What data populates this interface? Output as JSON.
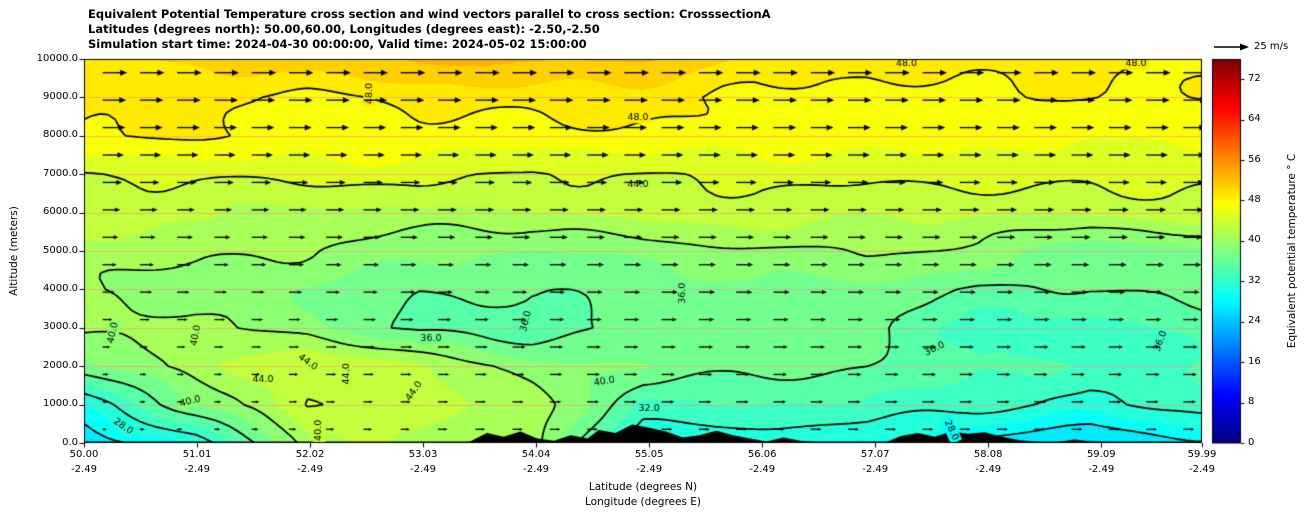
{
  "title": {
    "line1": "Equivalent Potential Temperature cross section and wind vectors parallel to cross section: CrosssectionA",
    "line2": "Latitudes (degrees north): 50.00,60.00, Longitudes (degrees east): -2.50,-2.50",
    "line3": "Simulation start time: 2024-04-30 00:00:00, Valid time: 2024-05-02 15:00:00"
  },
  "axes": {
    "y_label": "Altitude (meters)",
    "x_label_line1": "Latitude (degrees N)",
    "x_label_line2": "Longitude (degrees E)",
    "y_tick_labels": [
      "0.0",
      "1000.0",
      "2000.0",
      "3000.0",
      "4000.0",
      "5000.0",
      "6000.0",
      "7000.0",
      "8000.0",
      "9000.0",
      "10000.0"
    ],
    "x_ticks": [
      {
        "lat": "50.00",
        "lon": "-2.49"
      },
      {
        "lat": "51.01",
        "lon": "-2.49"
      },
      {
        "lat": "52.02",
        "lon": "-2.49"
      },
      {
        "lat": "53.03",
        "lon": "-2.49"
      },
      {
        "lat": "54.04",
        "lon": "-2.49"
      },
      {
        "lat": "55.05",
        "lon": "-2.49"
      },
      {
        "lat": "56.06",
        "lon": "-2.49"
      },
      {
        "lat": "57.07",
        "lon": "-2.49"
      },
      {
        "lat": "58.08",
        "lon": "-2.49"
      },
      {
        "lat": "59.09",
        "lon": "-2.49"
      },
      {
        "lat": "59.99",
        "lon": "-2.49"
      }
    ]
  },
  "colorbar": {
    "label": "Equivalent potential temperature ° C",
    "tick_labels": [
      "0",
      "8",
      "16",
      "24",
      "32",
      "40",
      "48",
      "56",
      "64",
      "72"
    ],
    "vmin": 0,
    "vmax": 76,
    "colormap": "jet"
  },
  "quiver_key": {
    "label": "25 m/s",
    "speed_m_s": 25
  },
  "chart_data": {
    "type": "contourf+contour+quiver cross-section",
    "xlim": [
      50.0,
      59.99
    ],
    "ylim": [
      0,
      10000
    ],
    "x_latitudes": [
      50,
      51,
      52,
      53,
      54,
      55,
      56,
      57,
      58,
      59,
      60
    ],
    "altitudes_m": [
      0,
      1000,
      2000,
      3000,
      4000,
      5000,
      6000,
      7000,
      8000,
      9000,
      10000
    ],
    "theta_e_c": [
      [
        26,
        30,
        41,
        42,
        41,
        30,
        30,
        30,
        27.5,
        26,
        27.5
      ],
      [
        30,
        38,
        44.3,
        43,
        41,
        33.5,
        34,
        34,
        33,
        31,
        33
      ],
      [
        38,
        41,
        44.2,
        42,
        39,
        38,
        37,
        36,
        34,
        33.5,
        34
      ],
      [
        40.5,
        40.2,
        39,
        35.5,
        35,
        36.5,
        37,
        36.5,
        33.5,
        33,
        35
      ],
      [
        40,
        39.5,
        38,
        36,
        35.8,
        37,
        38,
        37.5,
        35.8,
        35.5,
        36.5
      ],
      [
        41,
        40.5,
        39.5,
        38.5,
        38,
        39,
        39.5,
        39.8,
        39.5,
        36.5,
        38
      ],
      [
        43,
        42.5,
        41.5,
        42,
        41.5,
        42.5,
        43,
        42.5,
        42.5,
        42.5,
        43
      ],
      [
        44.3,
        44.5,
        44.8,
        44.5,
        43.6,
        44.3,
        45,
        44.8,
        44.5,
        44.5,
        44.3
      ],
      [
        48,
        47.8,
        47.3,
        47.5,
        47.5,
        47.5,
        46.8,
        46.5,
        46.6,
        46.6,
        46.6
      ],
      [
        48.6,
        48.5,
        47.9,
        48.4,
        48.6,
        48.5,
        47.9,
        47.6,
        47.7,
        47.7,
        47.8
      ],
      [
        50,
        50.5,
        51,
        52,
        52.5,
        52.5,
        49.5,
        48.4,
        48.3,
        48.3,
        48.2
      ]
    ],
    "u_wind_m_s": [
      [
        3,
        4,
        6,
        7,
        8,
        8,
        8,
        8,
        8,
        8,
        8
      ],
      [
        4,
        5,
        7,
        8,
        9,
        10,
        10,
        10,
        10,
        10,
        10
      ],
      [
        5,
        6,
        8,
        9,
        10,
        11,
        11,
        11,
        11,
        11,
        11
      ],
      [
        7,
        8,
        9,
        10,
        11,
        12,
        12,
        12,
        12,
        12,
        12
      ],
      [
        10,
        10,
        11,
        12,
        12,
        13,
        13,
        13,
        13,
        13,
        13
      ],
      [
        12,
        12,
        13,
        13,
        14,
        14,
        14,
        14,
        14,
        15,
        15
      ],
      [
        14,
        14,
        14,
        15,
        15,
        15,
        15,
        15,
        16,
        16,
        16
      ],
      [
        16,
        16,
        16,
        16,
        16,
        17,
        17,
        17,
        17,
        17,
        17
      ],
      [
        18,
        18,
        18,
        18,
        18,
        18,
        18,
        18,
        18,
        18,
        18
      ],
      [
        19,
        19,
        19,
        19,
        19,
        19,
        19,
        19,
        19,
        19,
        19
      ],
      [
        20,
        20,
        20,
        20,
        20,
        20,
        20,
        20,
        20,
        20,
        20
      ]
    ],
    "contour_levels": [
      28,
      32,
      36,
      40,
      44,
      48
    ],
    "fill_level_step": 2,
    "contour_labels": [
      {
        "text": "48.0",
        "lat": 52.55,
        "alt": 9100,
        "rot": 90
      },
      {
        "text": "48.0",
        "lat": 54.95,
        "alt": 8480,
        "rot": 0
      },
      {
        "text": "48.0",
        "lat": 57.35,
        "alt": 9880,
        "rot": 0
      },
      {
        "text": "48.0",
        "lat": 59.4,
        "alt": 9880,
        "rot": 0
      },
      {
        "text": "44.0",
        "lat": 54.95,
        "alt": 6720,
        "rot": 0
      },
      {
        "text": "36.0",
        "lat": 55.35,
        "alt": 3900,
        "rot": 90
      },
      {
        "text": "36.0",
        "lat": 53.1,
        "alt": 2730,
        "rot": 0
      },
      {
        "text": "36.0",
        "lat": 53.95,
        "alt": 3170,
        "rot": 75
      },
      {
        "text": "36.0",
        "lat": 57.6,
        "alt": 2450,
        "rot": 25
      },
      {
        "text": "36.0",
        "lat": 59.62,
        "alt": 2650,
        "rot": 70
      },
      {
        "text": "40.0",
        "lat": 50.26,
        "alt": 2870,
        "rot": 78
      },
      {
        "text": "40.0",
        "lat": 51.0,
        "alt": 2800,
        "rot": 80
      },
      {
        "text": "44.0",
        "lat": 52.0,
        "alt": 2100,
        "rot": -35
      },
      {
        "text": "44.0",
        "lat": 52.35,
        "alt": 1800,
        "rot": 90
      },
      {
        "text": "44.0",
        "lat": 51.6,
        "alt": 1660,
        "rot": 0
      },
      {
        "text": "44.0",
        "lat": 52.95,
        "alt": 1350,
        "rot": 55
      },
      {
        "text": "40.0",
        "lat": 50.95,
        "alt": 1080,
        "rot": 15
      },
      {
        "text": "40.0",
        "lat": 54.65,
        "alt": 1600,
        "rot": 10
      },
      {
        "text": "40.0",
        "lat": 52.1,
        "alt": 330,
        "rot": 90
      },
      {
        "text": "32.0",
        "lat": 55.05,
        "alt": 900,
        "rot": 0
      },
      {
        "text": "28.0",
        "lat": 50.35,
        "alt": 430,
        "rot": -35
      },
      {
        "text": "28.0",
        "lat": 57.75,
        "alt": 330,
        "rot": -65
      }
    ],
    "terrain_profile": [
      [
        50,
        0
      ],
      [
        53.3,
        0
      ],
      [
        53.45,
        40
      ],
      [
        53.6,
        260
      ],
      [
        53.75,
        160
      ],
      [
        53.9,
        300
      ],
      [
        54.05,
        120
      ],
      [
        54.2,
        60
      ],
      [
        54.35,
        200
      ],
      [
        54.5,
        120
      ],
      [
        54.6,
        340
      ],
      [
        54.75,
        260
      ],
      [
        54.9,
        480
      ],
      [
        55.05,
        400
      ],
      [
        55.2,
        300
      ],
      [
        55.35,
        140
      ],
      [
        55.5,
        200
      ],
      [
        55.65,
        320
      ],
      [
        55.8,
        200
      ],
      [
        55.95,
        120
      ],
      [
        56.1,
        40
      ],
      [
        56.25,
        140
      ],
      [
        56.4,
        60
      ],
      [
        56.55,
        20
      ],
      [
        56.7,
        0
      ],
      [
        57.0,
        20
      ],
      [
        57.15,
        0
      ],
      [
        57.3,
        180
      ],
      [
        57.45,
        260
      ],
      [
        57.6,
        160
      ],
      [
        57.75,
        300
      ],
      [
        57.9,
        240
      ],
      [
        58.05,
        280
      ],
      [
        58.2,
        160
      ],
      [
        58.35,
        80
      ],
      [
        58.5,
        30
      ],
      [
        58.65,
        0
      ],
      [
        58.85,
        90
      ],
      [
        59.0,
        40
      ],
      [
        59.15,
        0
      ],
      [
        60,
        0
      ]
    ],
    "gridlines": {
      "horizontal_every_m": 1000,
      "color": "#ff9999"
    }
  }
}
